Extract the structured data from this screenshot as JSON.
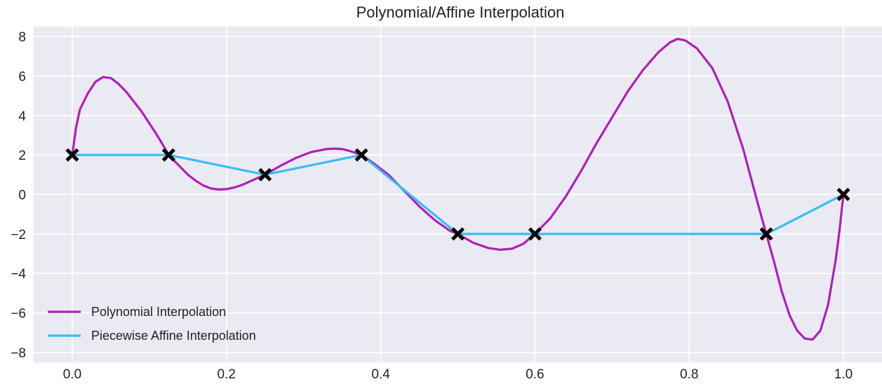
{
  "chart_data": {
    "type": "line",
    "title": "Polynomial/Affine Interpolation",
    "xlabel": "",
    "ylabel": "",
    "xlim": [
      -0.05,
      1.05
    ],
    "ylim": [
      -8.5,
      8.5
    ],
    "xticks": [
      0.0,
      0.2,
      0.4,
      0.6,
      0.8,
      1.0
    ],
    "xtick_labels": [
      "0.0",
      "0.2",
      "0.4",
      "0.6",
      "0.8",
      "1.0"
    ],
    "yticks": [
      -8,
      -6,
      -4,
      -2,
      0,
      2,
      4,
      6,
      8
    ],
    "ytick_labels": [
      "−8",
      "−6",
      "−4",
      "−2",
      "0",
      "2",
      "4",
      "6",
      "8"
    ],
    "grid": true,
    "legend_position": "lower-left",
    "background_color": "#eaeaf2",
    "series": [
      {
        "name": "Polynomial Interpolation",
        "color": "#b01fb8",
        "style": "line",
        "points": [
          [
            0.0,
            2.0
          ],
          [
            0.005,
            3.4
          ],
          [
            0.01,
            4.3
          ],
          [
            0.02,
            5.1
          ],
          [
            0.03,
            5.7
          ],
          [
            0.04,
            5.95
          ],
          [
            0.05,
            5.9
          ],
          [
            0.06,
            5.6
          ],
          [
            0.07,
            5.2
          ],
          [
            0.08,
            4.7
          ],
          [
            0.09,
            4.2
          ],
          [
            0.1,
            3.6
          ],
          [
            0.11,
            3.0
          ],
          [
            0.12,
            2.35
          ],
          [
            0.125,
            2.0
          ],
          [
            0.14,
            1.4
          ],
          [
            0.15,
            1.0
          ],
          [
            0.16,
            0.7
          ],
          [
            0.17,
            0.45
          ],
          [
            0.18,
            0.3
          ],
          [
            0.19,
            0.25
          ],
          [
            0.2,
            0.27
          ],
          [
            0.21,
            0.35
          ],
          [
            0.22,
            0.48
          ],
          [
            0.23,
            0.65
          ],
          [
            0.25,
            1.0
          ],
          [
            0.27,
            1.45
          ],
          [
            0.29,
            1.85
          ],
          [
            0.31,
            2.15
          ],
          [
            0.33,
            2.3
          ],
          [
            0.34,
            2.32
          ],
          [
            0.35,
            2.3
          ],
          [
            0.36,
            2.2
          ],
          [
            0.375,
            2.0
          ],
          [
            0.39,
            1.6
          ],
          [
            0.41,
            1.0
          ],
          [
            0.43,
            0.2
          ],
          [
            0.45,
            -0.6
          ],
          [
            0.47,
            -1.3
          ],
          [
            0.49,
            -1.85
          ],
          [
            0.5,
            -2.0
          ],
          [
            0.52,
            -2.45
          ],
          [
            0.54,
            -2.72
          ],
          [
            0.555,
            -2.8
          ],
          [
            0.57,
            -2.75
          ],
          [
            0.585,
            -2.5
          ],
          [
            0.6,
            -2.0
          ],
          [
            0.62,
            -1.2
          ],
          [
            0.64,
            -0.1
          ],
          [
            0.66,
            1.2
          ],
          [
            0.68,
            2.6
          ],
          [
            0.7,
            3.9
          ],
          [
            0.72,
            5.2
          ],
          [
            0.74,
            6.3
          ],
          [
            0.76,
            7.2
          ],
          [
            0.775,
            7.7
          ],
          [
            0.785,
            7.88
          ],
          [
            0.795,
            7.8
          ],
          [
            0.81,
            7.4
          ],
          [
            0.83,
            6.4
          ],
          [
            0.85,
            4.7
          ],
          [
            0.87,
            2.3
          ],
          [
            0.89,
            -0.6
          ],
          [
            0.9,
            -2.0
          ],
          [
            0.91,
            -3.4
          ],
          [
            0.92,
            -4.9
          ],
          [
            0.93,
            -6.1
          ],
          [
            0.94,
            -6.9
          ],
          [
            0.95,
            -7.3
          ],
          [
            0.96,
            -7.35
          ],
          [
            0.97,
            -6.9
          ],
          [
            0.98,
            -5.6
          ],
          [
            0.99,
            -3.3
          ],
          [
            0.995,
            -1.8
          ],
          [
            1.0,
            0.0
          ]
        ]
      },
      {
        "name": "Piecewise Affine Interpolation",
        "color": "#36bdf7",
        "style": "line",
        "points": [
          [
            0.0,
            2.0
          ],
          [
            0.125,
            2.0
          ],
          [
            0.25,
            1.0
          ],
          [
            0.375,
            2.0
          ],
          [
            0.5,
            -2.0
          ],
          [
            0.6,
            -2.0
          ],
          [
            0.9,
            -2.0
          ],
          [
            1.0,
            0.0
          ]
        ]
      },
      {
        "name": "",
        "color": "#000000",
        "style": "x-marker",
        "points": [
          [
            0.0,
            2.0
          ],
          [
            0.125,
            2.0
          ],
          [
            0.25,
            1.0
          ],
          [
            0.375,
            2.0
          ],
          [
            0.5,
            -2.0
          ],
          [
            0.6,
            -2.0
          ],
          [
            0.9,
            -2.0
          ],
          [
            1.0,
            0.0
          ]
        ]
      }
    ],
    "legend": [
      {
        "label": "Polynomial Interpolation",
        "color": "#b01fb8"
      },
      {
        "label": "Piecewise Affine Interpolation",
        "color": "#36bdf7"
      }
    ]
  }
}
